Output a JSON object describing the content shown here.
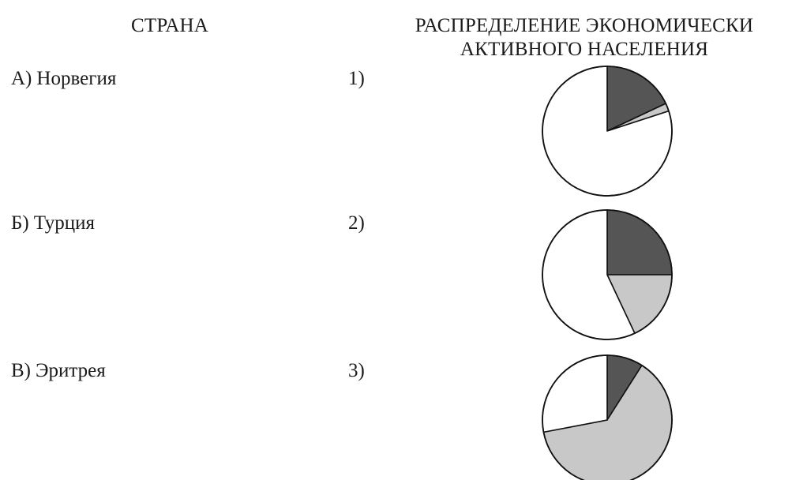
{
  "headers": {
    "country": "СТРАНА",
    "distribution_line1": "РАСПРЕДЕЛЕНИЕ ЭКОНОМИЧЕСКИ",
    "distribution_line2": "АКТИВНОГО НАСЕЛЕНИЯ"
  },
  "countries": [
    {
      "letter": "А)",
      "name": "Норвегия"
    },
    {
      "letter": "Б)",
      "name": "Турция"
    },
    {
      "letter": "В)",
      "name": "Эритрея"
    }
  ],
  "colors": {
    "dark": "#555555",
    "light": "#c8c8c8",
    "white": "#ffffff",
    "stroke": "#111111"
  },
  "chart_data": [
    {
      "type": "pie",
      "label": "1)",
      "start_angle_deg": 0,
      "values": [
        18,
        2,
        80
      ],
      "slice_colors": [
        "dark",
        "light",
        "white"
      ]
    },
    {
      "type": "pie",
      "label": "2)",
      "start_angle_deg": 0,
      "values": [
        25,
        18,
        57
      ],
      "slice_colors": [
        "dark",
        "light",
        "white"
      ]
    },
    {
      "type": "pie",
      "label": "3)",
      "start_angle_deg": 0,
      "values": [
        9,
        63,
        28
      ],
      "slice_colors": [
        "dark",
        "light",
        "white"
      ]
    }
  ]
}
